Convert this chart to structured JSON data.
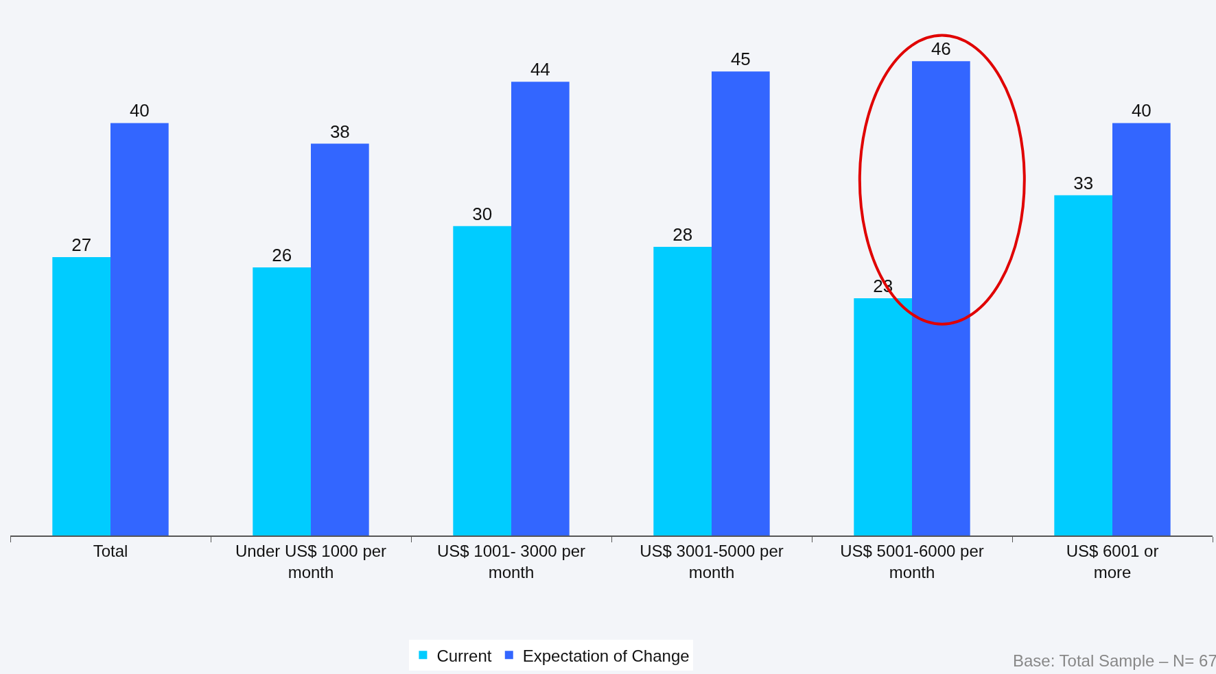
{
  "chart_data": {
    "type": "bar",
    "categories": [
      "Total",
      "Under US$ 1000 per month",
      "US$ 1001- 3000 per month",
      "US$ 3001-5000 per month",
      "US$ 5001-6000 per month",
      "US$ 6001 or more"
    ],
    "series": [
      {
        "name": "Current",
        "color": "#00ccff",
        "values": [
          27,
          26,
          30,
          28,
          23,
          33
        ]
      },
      {
        "name": "Expectation of Change",
        "color": "#3366ff",
        "values": [
          40,
          38,
          44,
          45,
          46,
          40
        ]
      }
    ],
    "data_labels": true,
    "tick_labels": "x",
    "grid": false,
    "legend": "bottom",
    "annotations": [
      "Base: Total Sample – N= 67"
    ]
  }
}
